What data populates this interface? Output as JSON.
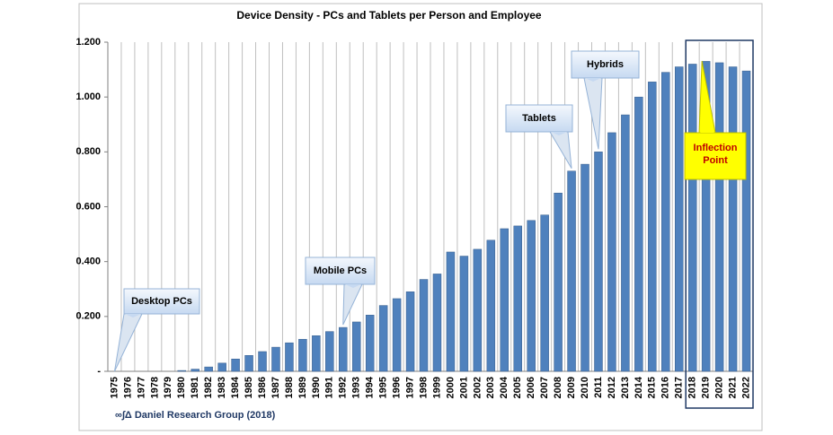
{
  "chart_data": {
    "type": "bar",
    "title": "Device Density - PCs and Tablets per Person and Employee",
    "categories": [
      "1975",
      "1976",
      "1977",
      "1978",
      "1979",
      "1980",
      "1981",
      "1982",
      "1983",
      "1984",
      "1985",
      "1986",
      "1987",
      "1988",
      "1989",
      "1990",
      "1991",
      "1992",
      "1993",
      "1994",
      "1995",
      "1996",
      "1997",
      "1998",
      "1999",
      "2000",
      "2001",
      "2002",
      "2003",
      "2004",
      "2005",
      "2006",
      "2007",
      "2008",
      "2009",
      "2010",
      "2011",
      "2012",
      "2013",
      "2014",
      "2015",
      "2016",
      "2017",
      "2018",
      "2019",
      "2020",
      "2021",
      "2022"
    ],
    "values": [
      0,
      0,
      0,
      0,
      0,
      0.003,
      0.008,
      0.016,
      0.03,
      0.045,
      0.058,
      0.072,
      0.088,
      0.104,
      0.117,
      0.13,
      0.145,
      0.16,
      0.18,
      0.205,
      0.24,
      0.265,
      0.29,
      0.335,
      0.355,
      0.435,
      0.42,
      0.445,
      0.478,
      0.52,
      0.53,
      0.55,
      0.57,
      0.65,
      0.73,
      0.755,
      0.8,
      0.87,
      0.935,
      1.0,
      1.055,
      1.09,
      1.11,
      1.12,
      1.13,
      1.125,
      1.11,
      1.095
    ],
    "color": "#4f81bd",
    "ylim": [
      0,
      1.2
    ],
    "yticks": [
      {
        "value": 0,
        "label": "-"
      },
      {
        "value": 0.2,
        "label": "0.200"
      },
      {
        "value": 0.4,
        "label": "0.400"
      },
      {
        "value": 0.6,
        "label": "0.600"
      },
      {
        "value": 0.8,
        "label": "0.800"
      },
      {
        "value": 1.0,
        "label": "1.000"
      },
      {
        "value": 1.2,
        "label": "1.200"
      }
    ],
    "annotations": [
      "Desktop PCs",
      "Mobile PCs",
      "Tablets",
      "Hybrids",
      "Inflection Point"
    ],
    "source": "∞∫Δ Daniel Research Group (2018)"
  }
}
